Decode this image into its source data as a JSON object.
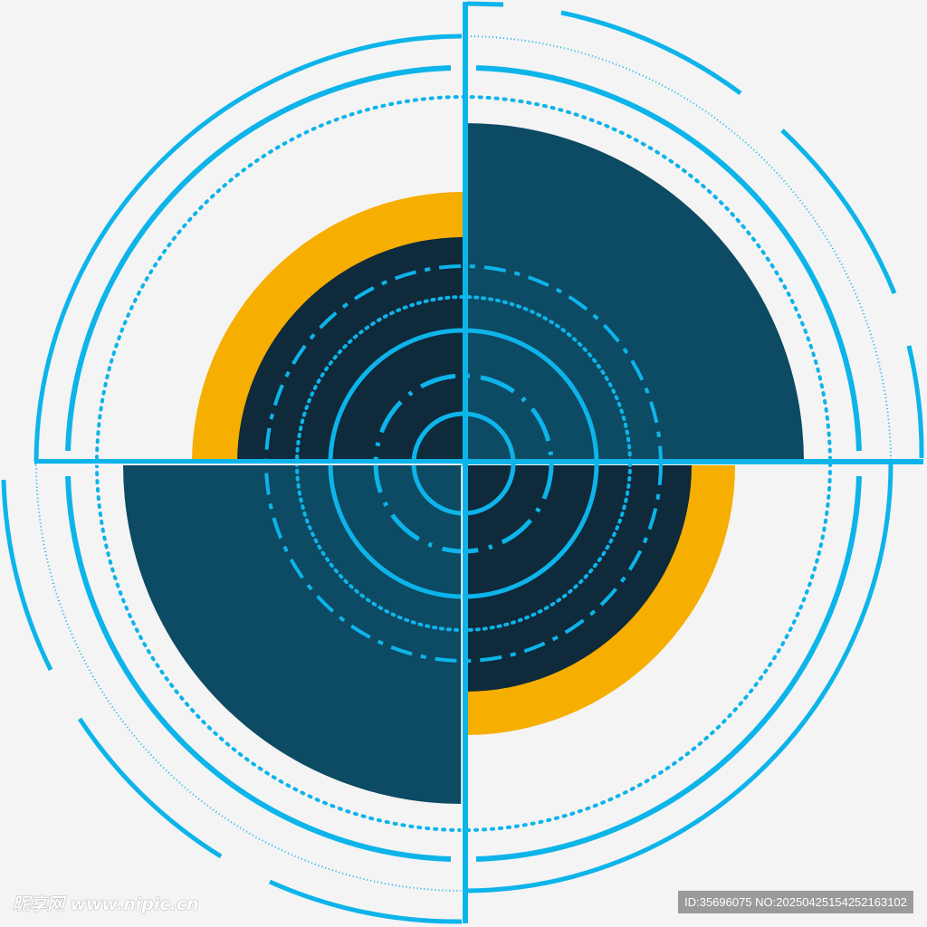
{
  "colors": {
    "background": "#f4f4f4",
    "cyan": "#0db4ea",
    "teal": "#0d4a63",
    "navy": "#0e2a3b",
    "orange": "#f6ae00"
  },
  "watermark": {
    "logo": "昵享网 www.nipic.cn",
    "id_text": "ID:35696075 NO:20250425154252163102"
  }
}
